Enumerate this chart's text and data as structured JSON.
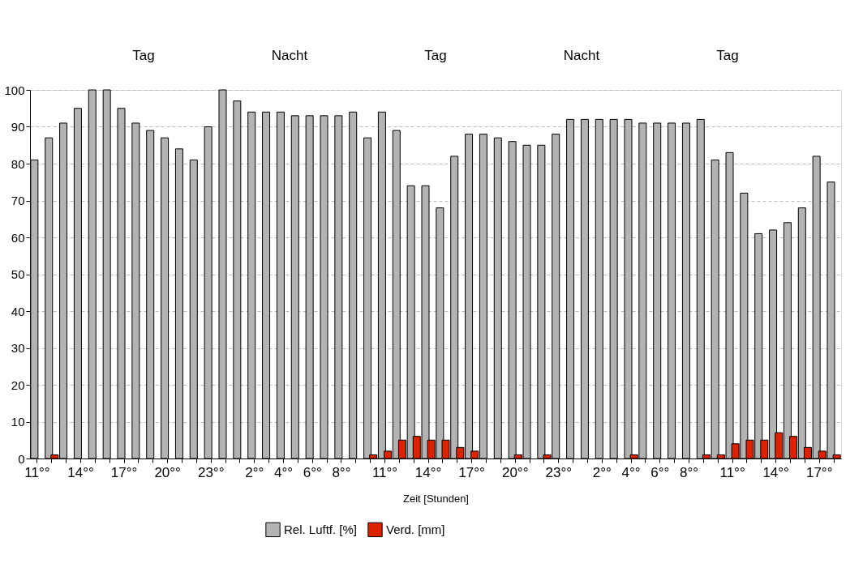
{
  "chart_data": {
    "type": "bar",
    "xlabel": "Zeit [Stunden]",
    "categories": [
      "11°°",
      null,
      null,
      "14°°",
      null,
      null,
      "17°°",
      null,
      null,
      "20°°",
      null,
      null,
      "23°°",
      null,
      null,
      "2°°",
      null,
      "4°°",
      null,
      "6°°",
      null,
      "8°°",
      null,
      null,
      "11°°",
      null,
      null,
      "14°°",
      null,
      null,
      "17°°",
      null,
      null,
      "20°°",
      null,
      null,
      "23°°",
      null,
      null,
      "2°°",
      null,
      "4°°",
      null,
      "6°°",
      null,
      "8°°",
      null,
      null,
      "11°°",
      null,
      null,
      "14°°",
      null,
      null,
      "17°°",
      null
    ],
    "series": [
      {
        "name": "Rel. Luftf. [%]",
        "color": "#b3b3b3",
        "values": [
          81,
          87,
          91,
          95,
          100,
          100,
          95,
          91,
          89,
          87,
          84,
          81,
          90,
          100,
          97,
          94,
          94,
          94,
          93,
          93,
          93,
          93,
          94,
          87,
          94,
          89,
          74,
          74,
          68,
          82,
          88,
          88,
          87,
          86,
          85,
          85,
          88,
          92,
          92,
          92,
          92,
          92,
          91,
          91,
          91,
          91,
          92,
          81,
          83,
          72,
          61,
          62,
          64,
          68,
          82,
          75
        ]
      },
      {
        "name": "Verd. [mm]",
        "color": "#dd2200",
        "values": [
          0,
          1,
          0,
          0,
          0,
          0,
          0,
          0,
          0,
          0,
          0,
          0,
          0,
          0,
          0,
          0,
          0,
          0,
          0,
          0,
          0,
          0,
          0,
          1,
          2,
          5,
          6,
          5,
          5,
          3,
          2,
          0,
          0,
          1,
          0,
          1,
          0,
          0,
          0,
          0,
          0,
          1,
          0,
          0,
          0,
          0,
          1,
          1,
          4,
          5,
          5,
          7,
          6,
          3,
          2,
          1
        ]
      }
    ],
    "ylim": [
      0,
      100
    ],
    "yticks": [
      0,
      10,
      20,
      30,
      40,
      50,
      60,
      70,
      80,
      90,
      100
    ],
    "grid": "y",
    "legend": "bottom",
    "annotations": [
      "Tag",
      "Nacht",
      "Tag",
      "Nacht",
      "Tag"
    ]
  }
}
